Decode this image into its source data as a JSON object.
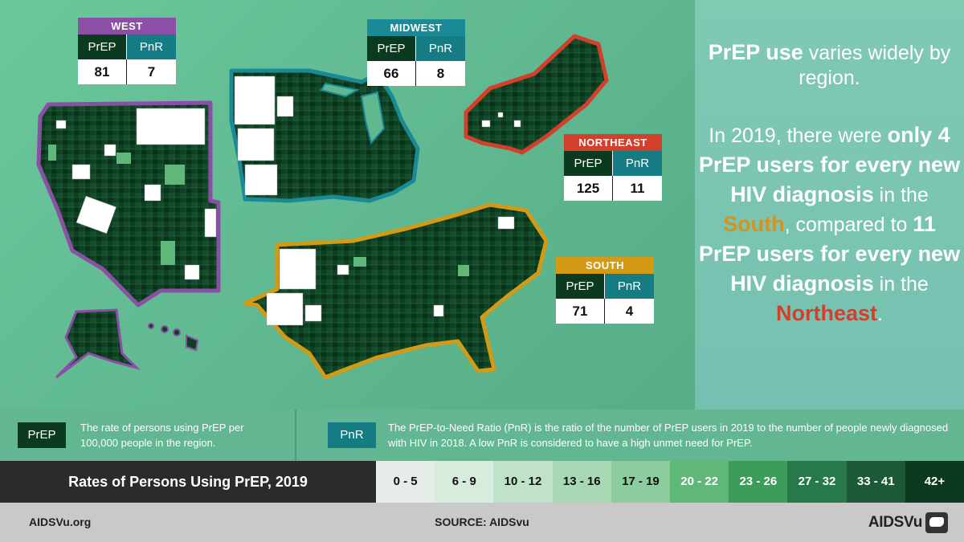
{
  "colors": {
    "west": "#8b4fa6",
    "midwest": "#1a8a96",
    "northeast": "#d2402c",
    "south": "#d49a14",
    "prep_dark": "#0b3a20",
    "pnr_teal": "#157c83"
  },
  "regions": [
    {
      "id": "west",
      "name": "WEST",
      "prep": "81",
      "pnr": "7"
    },
    {
      "id": "midwest",
      "name": "MIDWEST",
      "prep": "66",
      "pnr": "8"
    },
    {
      "id": "northeast",
      "name": "NORTHEAST",
      "prep": "125",
      "pnr": "11"
    },
    {
      "id": "south",
      "name": "SOUTH",
      "prep": "71",
      "pnr": "4"
    }
  ],
  "table_headers": {
    "prep": "PrEP",
    "pnr": "PnR"
  },
  "panel": {
    "h1_bold": "PrEP use",
    "h1_rest": " varies widely by region.",
    "p1": "In 2019, there were",
    "p2_bold": "only 4 PrEP users for every new HIV diagnosis",
    "p3": " in the",
    "south_word": "South",
    "p4": ", compared to",
    "p5_bold": "11 PrEP users for every new HIV diagnosis",
    "p6": " in the",
    "northeast_word": "Northeast",
    "p7": "."
  },
  "definitions": {
    "prep_badge": "PrEP",
    "prep_text": "The rate of persons using PrEP per 100,000 people in the region.",
    "pnr_badge": "PnR",
    "pnr_text": "The PrEP-to-Need Ratio (PnR) is the ratio of the number of PrEP users in 2019 to the number of people newly diagnosed with HIV in 2018. A low PnR is considered to have a high unmet need for PrEP."
  },
  "legend": {
    "title": "Rates of Persons Using PrEP, 2019",
    "bins": [
      {
        "label": "0 - 5",
        "color": "#e6ece8",
        "text": "#111"
      },
      {
        "label": "6 - 9",
        "color": "#d6ecdc",
        "text": "#111"
      },
      {
        "label": "10 - 12",
        "color": "#bfe2c8",
        "text": "#111"
      },
      {
        "label": "13 - 16",
        "color": "#a9d8b5",
        "text": "#111"
      },
      {
        "label": "17 - 19",
        "color": "#8ccc9e",
        "text": "#111"
      },
      {
        "label": "20 - 22",
        "color": "#5fb87a",
        "text": "#fff"
      },
      {
        "label": "23 - 26",
        "color": "#3d9b5c",
        "text": "#fff"
      },
      {
        "label": "27 - 32",
        "color": "#27794a",
        "text": "#fff"
      },
      {
        "label": "33 - 41",
        "color": "#1c5a37",
        "text": "#fff"
      },
      {
        "label": "42+",
        "color": "#0b3a20",
        "text": "#fff"
      }
    ]
  },
  "footer": {
    "site": "AIDSVu.org",
    "source": "SOURCE: AIDSvu",
    "logo": "AIDSVu"
  }
}
